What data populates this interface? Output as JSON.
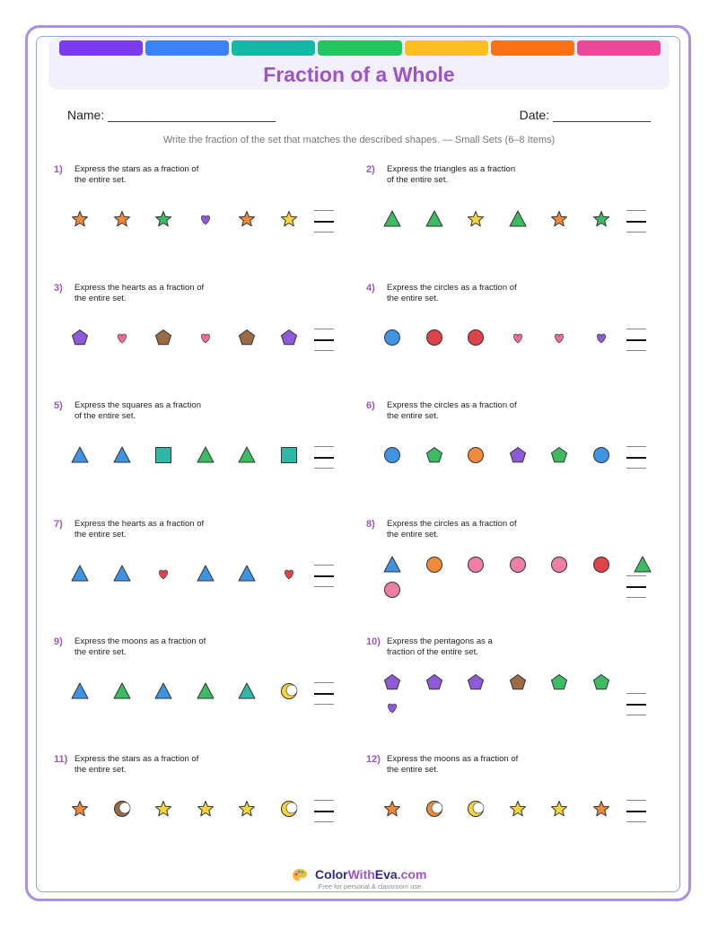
{
  "colors": {
    "rainbow": [
      "#7c3aed",
      "#3b82f6",
      "#14b8a6",
      "#22c55e",
      "#fbbf24",
      "#f97316",
      "#ec4899"
    ],
    "orange": "#f08a3a",
    "green": "#3dbb62",
    "purple": "#8f5ad8",
    "yellow": "#f5d53b",
    "blue": "#3f93e3",
    "teal": "#2fb7a8",
    "brown": "#9a6b45",
    "pink": "#ec6e96",
    "red": "#e0424a",
    "lightpink": "#ef7ea3",
    "greenpoly": "#3dbb62"
  },
  "header": {
    "title": "Fraction of a Whole",
    "name_label": "Name: ________________________",
    "date_label": "Date: ______________",
    "instructions": "Write the fraction of the set that matches the described shapes. — Small Sets (6–8 Items)"
  },
  "problems": [
    {
      "num": "1)",
      "text": "Express the stars as a fraction of the entire set.",
      "items": [
        [
          "star",
          "orange"
        ],
        [
          "star",
          "orange"
        ],
        [
          "star",
          "green"
        ],
        [
          "heart",
          "purple"
        ],
        [
          "star",
          "orange"
        ],
        [
          "star",
          "yellow"
        ]
      ]
    },
    {
      "num": "2)",
      "text": "Express the triangles as a fraction of the entire set.",
      "items": [
        [
          "triangle",
          "green"
        ],
        [
          "triangle",
          "green"
        ],
        [
          "star",
          "yellow"
        ],
        [
          "triangle",
          "green"
        ],
        [
          "star",
          "orange"
        ],
        [
          "star",
          "green"
        ]
      ]
    },
    {
      "num": "3)",
      "text": "Express the hearts as a fraction of the entire set.",
      "items": [
        [
          "pentagon",
          "purple"
        ],
        [
          "heart",
          "pink"
        ],
        [
          "pentagon",
          "brown"
        ],
        [
          "heart",
          "pink"
        ],
        [
          "pentagon",
          "brown"
        ],
        [
          "pentagon",
          "purple"
        ]
      ]
    },
    {
      "num": "4)",
      "text": "Express the circles as a fraction of the entire set.",
      "items": [
        [
          "circle",
          "blue"
        ],
        [
          "circle",
          "red"
        ],
        [
          "circle",
          "red"
        ],
        [
          "heart",
          "pink"
        ],
        [
          "heart",
          "pink"
        ],
        [
          "heart",
          "purple"
        ]
      ]
    },
    {
      "num": "5)",
      "text": "Express the squares as a fraction of the entire set.",
      "items": [
        [
          "triangle",
          "blue"
        ],
        [
          "triangle",
          "blue"
        ],
        [
          "square",
          "teal"
        ],
        [
          "triangle",
          "green"
        ],
        [
          "triangle",
          "green"
        ],
        [
          "square",
          "teal"
        ]
      ]
    },
    {
      "num": "6)",
      "text": "Express the circles as a fraction of the entire set.",
      "items": [
        [
          "circle",
          "blue"
        ],
        [
          "pentagon",
          "green"
        ],
        [
          "circle",
          "orange"
        ],
        [
          "pentagon",
          "purple"
        ],
        [
          "pentagon",
          "green"
        ],
        [
          "circle",
          "blue"
        ]
      ]
    },
    {
      "num": "7)",
      "text": "Express the hearts as a fraction of the entire set.",
      "items": [
        [
          "triangle",
          "blue"
        ],
        [
          "triangle",
          "blue"
        ],
        [
          "heart",
          "red"
        ],
        [
          "triangle",
          "blue"
        ],
        [
          "triangle",
          "blue"
        ],
        [
          "heart",
          "red"
        ]
      ]
    },
    {
      "num": "8)",
      "text": "Express the circles as a fraction of the entire set.",
      "items": [
        [
          "triangle",
          "blue"
        ],
        [
          "circle",
          "orange"
        ],
        [
          "circle",
          "lightpink"
        ],
        [
          "circle",
          "lightpink"
        ],
        [
          "circle",
          "lightpink"
        ],
        [
          "circle",
          "red"
        ],
        [
          "triangle",
          "green"
        ],
        [
          "circle",
          "lightpink"
        ]
      ]
    },
    {
      "num": "9)",
      "text": "Express the moons as a fraction of the entire set.",
      "items": [
        [
          "triangle",
          "blue"
        ],
        [
          "triangle",
          "green"
        ],
        [
          "triangle",
          "blue"
        ],
        [
          "triangle",
          "green"
        ],
        [
          "triangle",
          "teal"
        ],
        [
          "moon",
          "yellow"
        ]
      ]
    },
    {
      "num": "10)",
      "text": "Express the pentagons as a fraction of the entire set.",
      "items": [
        [
          "pentagon",
          "purple"
        ],
        [
          "pentagon",
          "purple"
        ],
        [
          "pentagon",
          "purple"
        ],
        [
          "pentagon",
          "brown"
        ],
        [
          "pentagon",
          "green"
        ],
        [
          "pentagon",
          "green"
        ],
        [
          "heart",
          "purple"
        ]
      ]
    },
    {
      "num": "11)",
      "text": "Express the stars as a fraction of the entire set.",
      "items": [
        [
          "star",
          "orange"
        ],
        [
          "moon",
          "brown"
        ],
        [
          "star",
          "yellow"
        ],
        [
          "star",
          "yellow"
        ],
        [
          "star",
          "yellow"
        ],
        [
          "moon",
          "yellow"
        ]
      ]
    },
    {
      "num": "12)",
      "text": "Express the moons as a fraction of the entire set.",
      "items": [
        [
          "star",
          "orange"
        ],
        [
          "moon",
          "orange"
        ],
        [
          "moon",
          "yellow"
        ],
        [
          "star",
          "yellow"
        ],
        [
          "star",
          "yellow"
        ],
        [
          "star",
          "orange"
        ]
      ]
    }
  ],
  "footer": {
    "brand_color": "Color",
    "brand_with": "With",
    "brand_eva": "Eva",
    "brand_com": ".com",
    "tagline": "Free for personal & classroom use"
  }
}
